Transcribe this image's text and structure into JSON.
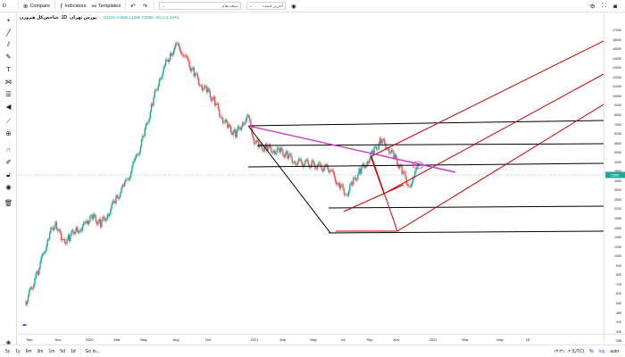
{
  "toolbar": {
    "symbol_search": "D",
    "compare_label": "Compare",
    "indicators_label": "Indicators",
    "templates_label": "Templates",
    "select1_value": "آخرین قیمت",
    "select2_value": "صنعت‌های",
    "colors": {
      "border": "#e0e3eb"
    }
  },
  "legend": {
    "title": "شاخص‌کل هم‌وزن",
    "interval": "1D",
    "exchange": "بورس تهران",
    "ohlc": "O2521 H2556 L2485 C2556 +61 (+2.44%)"
  },
  "price_axis": {
    "labels": [
      "17000",
      "16000",
      "15000",
      "14000",
      "13000",
      "12000",
      "11000",
      "10000",
      "9000",
      "8000",
      "7000",
      "6200",
      "5600",
      "5000",
      "4400",
      "3800",
      "3400",
      "3000",
      "2500",
      "2200",
      "1950",
      "1650",
      "1450",
      "1250",
      "1050",
      "940",
      "820",
      "720",
      "620",
      "540",
      "480",
      "410",
      "340",
      "298"
    ],
    "current_price": "2556",
    "current_color": "#26a69a"
  },
  "time_axis": {
    "labels": [
      "Sep",
      "Nov",
      "2020",
      "Mar",
      "May",
      "Aug",
      "Oct",
      "2021",
      "Mar",
      "May",
      "Jul",
      "Sep",
      "Nov",
      "2022",
      "Mar",
      "May",
      "18"
    ]
  },
  "bottom": {
    "ranges": [
      "5y",
      "1y",
      "6m",
      "3m",
      "1m",
      "5d",
      "1d"
    ],
    "goto_label": "Go to...",
    "time_label": "۱۴:۳۱:۰۲ (UTC)",
    "pct_label": "%",
    "log_label": "log",
    "auto_label": "auto"
  },
  "chart_data": {
    "type": "candlestick",
    "colors": {
      "up": "#26a69a",
      "down": "#ef5350",
      "pitchfork_black": "#000000",
      "pitchfork_red": "#cc0000",
      "trendline": "#cc33cc"
    },
    "price_series": [
      [
        2019.65,
        420
      ],
      [
        2019.72,
        620
      ],
      [
        2019.78,
        980
      ],
      [
        2019.82,
        1180
      ],
      [
        2019.86,
        900
      ],
      [
        2019.9,
        960
      ],
      [
        2019.94,
        1100
      ],
      [
        2019.97,
        1050
      ],
      [
        2020.0,
        1200
      ],
      [
        2020.04,
        1250
      ],
      [
        2020.08,
        1150
      ],
      [
        2020.12,
        1300
      ],
      [
        2020.17,
        1600
      ],
      [
        2020.22,
        1900
      ],
      [
        2020.28,
        2600
      ],
      [
        2020.33,
        3600
      ],
      [
        2020.38,
        5600
      ],
      [
        2020.42,
        7600
      ],
      [
        2020.45,
        9000
      ],
      [
        2020.49,
        10800
      ],
      [
        2020.52,
        11600
      ],
      [
        2020.55,
        11000
      ],
      [
        2020.58,
        9500
      ],
      [
        2020.62,
        8200
      ],
      [
        2020.66,
        7000
      ],
      [
        2020.7,
        6400
      ],
      [
        2020.74,
        5600
      ],
      [
        2020.78,
        4600
      ],
      [
        2020.82,
        4000
      ],
      [
        2020.86,
        3700
      ],
      [
        2020.9,
        4300
      ],
      [
        2020.93,
        4700
      ],
      [
        2020.96,
        3500
      ],
      [
        2021.0,
        3100
      ],
      [
        2021.04,
        3100
      ],
      [
        2021.08,
        3000
      ],
      [
        2021.12,
        2950
      ],
      [
        2021.16,
        2800
      ],
      [
        2021.2,
        2600
      ],
      [
        2021.3,
        2500
      ],
      [
        2021.4,
        2350
      ],
      [
        2021.46,
        1900
      ],
      [
        2021.5,
        1700
      ],
      [
        2021.54,
        2000
      ],
      [
        2021.58,
        2300
      ],
      [
        2021.62,
        2600
      ],
      [
        2021.66,
        3000
      ],
      [
        2021.7,
        3400
      ],
      [
        2021.74,
        3100
      ],
      [
        2021.78,
        2700
      ],
      [
        2021.82,
        2300
      ],
      [
        2021.86,
        1900
      ],
      [
        2021.89,
        2100
      ],
      [
        2021.92,
        2556
      ]
    ]
  }
}
